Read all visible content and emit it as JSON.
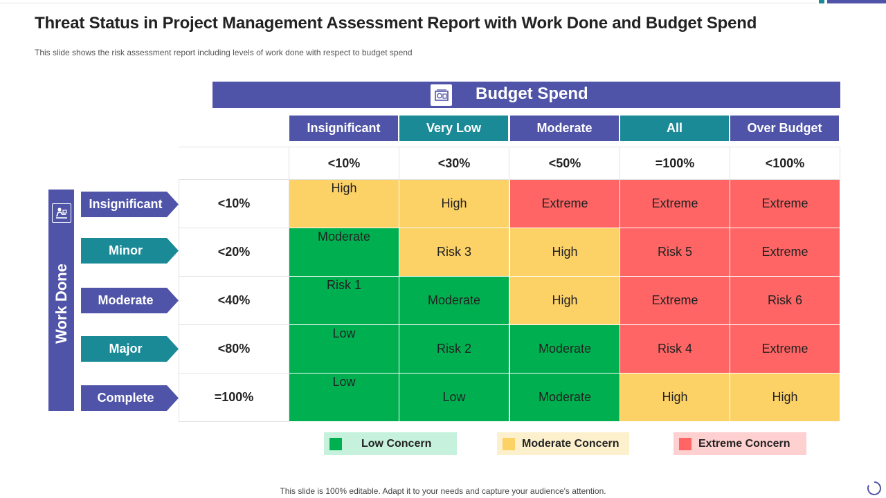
{
  "title": "Threat Status in Project Management Assessment Report with Work Done and Budget Spend",
  "subtitle": "This slide shows the risk assessment report including levels of work done with respect to budget spend",
  "budget": {
    "title": "Budget Spend",
    "icon": "money-icon",
    "columns": [
      {
        "label": "Insignificant",
        "value": "<10%",
        "color": "#5054a8"
      },
      {
        "label": "Very Low",
        "value": "<30%",
        "color": "#1a8a97"
      },
      {
        "label": "Moderate",
        "value": "<50%",
        "color": "#5054a8"
      },
      {
        "label": "All",
        "value": "=100%",
        "color": "#1a8a97"
      },
      {
        "label": "Over Budget",
        "value": "<100%",
        "color": "#5054a8"
      }
    ]
  },
  "work": {
    "title": "Work Done",
    "icon": "worker-icon",
    "rows": [
      {
        "label": "Insignificant",
        "value": "<10%",
        "color": "#5054a8"
      },
      {
        "label": "Minor",
        "value": "<20%",
        "color": "#1a8a97"
      },
      {
        "label": "Moderate",
        "value": "<40%",
        "color": "#5054a8"
      },
      {
        "label": "Major",
        "value": "<80%",
        "color": "#1a8a97"
      },
      {
        "label": "Complete",
        "value": "=100%",
        "color": "#5054a8"
      }
    ]
  },
  "matrix": [
    [
      {
        "text": "High",
        "level": "moderate"
      },
      {
        "text": "High",
        "level": "moderate"
      },
      {
        "text": "Extreme",
        "level": "extreme"
      },
      {
        "text": "Extreme",
        "level": "extreme"
      },
      {
        "text": "Extreme",
        "level": "extreme"
      }
    ],
    [
      {
        "text": "Moderate",
        "level": "low"
      },
      {
        "text": "Risk 3",
        "level": "moderate"
      },
      {
        "text": "High",
        "level": "moderate"
      },
      {
        "text": "Risk 5",
        "level": "extreme"
      },
      {
        "text": "Extreme",
        "level": "extreme"
      }
    ],
    [
      {
        "text": "Risk 1",
        "level": "low"
      },
      {
        "text": "Moderate",
        "level": "low"
      },
      {
        "text": "High",
        "level": "moderate"
      },
      {
        "text": "Extreme",
        "level": "extreme"
      },
      {
        "text": "Risk 6",
        "level": "extreme"
      }
    ],
    [
      {
        "text": "Low",
        "level": "low"
      },
      {
        "text": "Risk 2",
        "level": "low"
      },
      {
        "text": "Moderate",
        "level": "low"
      },
      {
        "text": "Risk 4",
        "level": "extreme"
      },
      {
        "text": "Extreme",
        "level": "extreme"
      }
    ],
    [
      {
        "text": "Low",
        "level": "low"
      },
      {
        "text": "Low",
        "level": "low"
      },
      {
        "text": "Moderate",
        "level": "low"
      },
      {
        "text": "High",
        "level": "moderate"
      },
      {
        "text": "High",
        "level": "moderate"
      }
    ]
  ],
  "level_colors": {
    "low": "#00b050",
    "moderate": "#fcd166",
    "extreme": "#ff6565"
  },
  "legend": [
    {
      "label": "Low Concern",
      "level": "low",
      "bg": "#c6f2dd",
      "swatch": "#00b050"
    },
    {
      "label": "Moderate Concern",
      "level": "moderate",
      "bg": "#fdf0cc",
      "swatch": "#fcd166"
    },
    {
      "label": "Extreme Concern",
      "level": "extreme",
      "bg": "#ffd0d0",
      "swatch": "#ff6565"
    }
  ],
  "footer": "This slide is 100% editable. Adapt it to your needs and capture your audience's attention."
}
